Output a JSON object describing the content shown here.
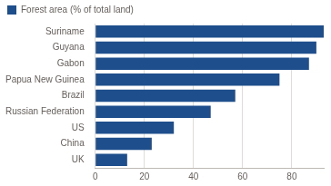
{
  "chart_data": {
    "type": "bar",
    "orientation": "horizontal",
    "categories": [
      "Suriname",
      "Guyana",
      "Gabon",
      "Papua New Guinea",
      "Brazil",
      "Russian Federation",
      "US",
      "China",
      "UK"
    ],
    "series": [
      {
        "name": "Forest area (% of total land)",
        "color": "#1f4e8c",
        "values": [
          93,
          90,
          87,
          75,
          57,
          47,
          32,
          23,
          13
        ]
      }
    ],
    "xlim": [
      0,
      93
    ],
    "xticks": [
      0,
      20,
      40,
      60,
      80
    ],
    "grid": true,
    "legend": "top-left"
  }
}
